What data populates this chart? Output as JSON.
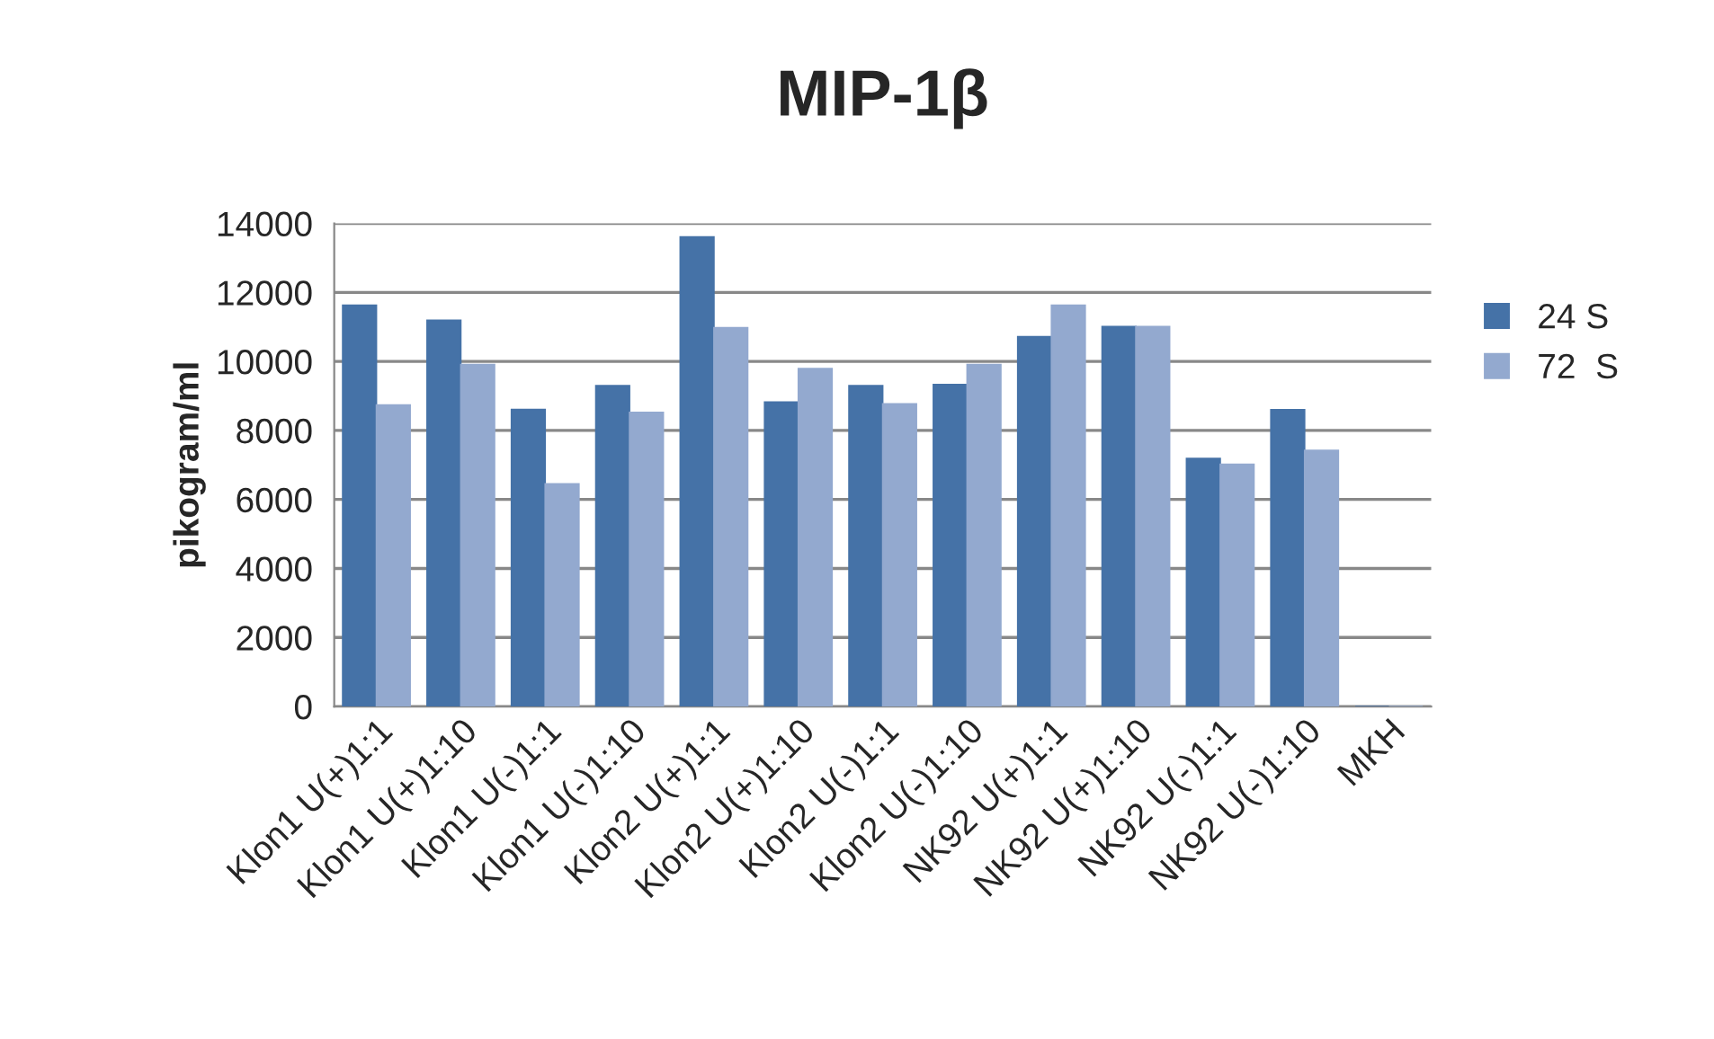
{
  "chart_data": {
    "type": "bar",
    "title": "MIP-1β",
    "ylabel": "pikogram/ml",
    "categories": [
      "Klon1 U(+)1:1",
      "Klon1 U(+)1:10",
      "Klon1 U(-)1:1",
      "Klon1 U(-)1:10",
      "Klon2 U(+)1:1",
      "Klon2 U(+)1:10",
      "Klon2 U(-)1:1",
      "Klon2 U(-)1:10",
      "NK92 U(+)1:1",
      "NK92 U(+)1:10",
      "NK92 U(-)1:1",
      "NK92 U(-)1:10",
      "MKH"
    ],
    "series": [
      {
        "name": "24 S",
        "color": "#4572a7",
        "values": [
          11630,
          11190,
          8610,
          9300,
          13610,
          8820,
          9300,
          9330,
          10720,
          11010,
          7190,
          8600,
          0
        ]
      },
      {
        "name": "72  S",
        "color": "#93a9cf",
        "values": [
          8740,
          9910,
          6450,
          8520,
          10980,
          9790,
          8770,
          9910,
          11630,
          11010,
          7020,
          7420,
          0
        ]
      }
    ],
    "ylim": [
      0,
      14000
    ],
    "yticks": [
      0,
      2000,
      4000,
      6000,
      8000,
      10000,
      12000,
      14000
    ],
    "grid": "y",
    "legend": "right"
  }
}
